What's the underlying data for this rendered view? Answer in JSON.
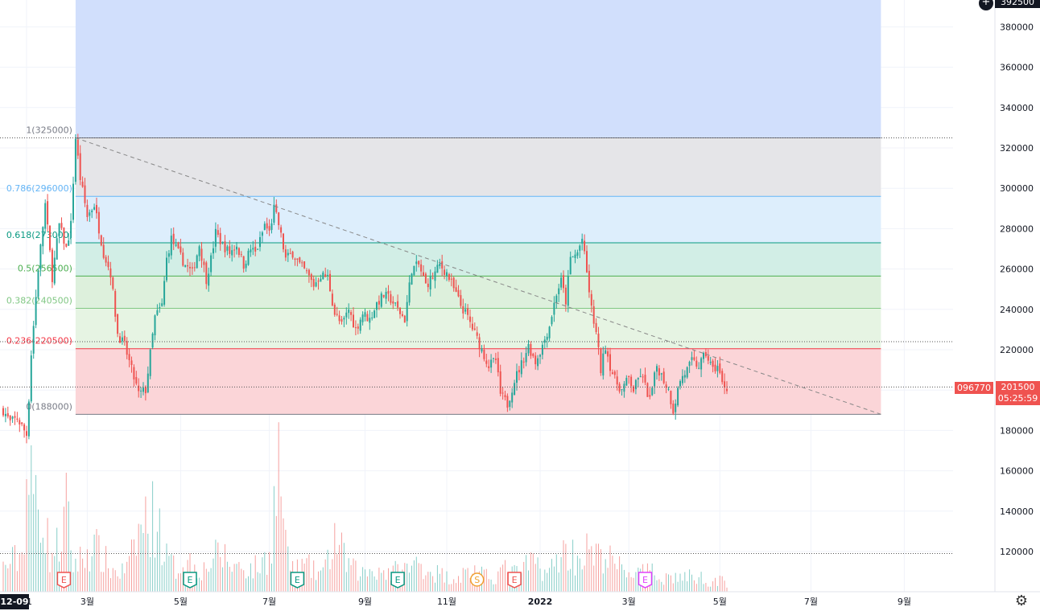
{
  "chart_data": {
    "type": "candlestick",
    "y_axis": {
      "ticks": [
        "380000",
        "360000",
        "340000",
        "320000",
        "300000",
        "280000",
        "260000",
        "240000",
        "220000",
        "200000",
        "180000",
        "160000",
        "140000",
        "120000"
      ],
      "tick_values": [
        380000,
        360000,
        340000,
        320000,
        300000,
        280000,
        260000,
        240000,
        220000,
        200000,
        180000,
        160000,
        140000,
        120000
      ]
    },
    "x_axis": {
      "ticks": [
        {
          "label": "21",
          "idx": 10
        },
        {
          "label": "3월",
          "idx": 36
        },
        {
          "label": "5월",
          "idx": 76
        },
        {
          "label": "7월",
          "idx": 114
        },
        {
          "label": "9월",
          "idx": 155
        },
        {
          "label": "11월",
          "idx": 190
        },
        {
          "label": "2022",
          "idx": 230
        },
        {
          "label": "3월",
          "idx": 268
        },
        {
          "label": "5월",
          "idx": 307
        },
        {
          "label": "7월",
          "idx": 346
        },
        {
          "label": "9월",
          "idx": 386
        }
      ]
    },
    "fib_levels": [
      {
        "label": "1(325000)",
        "ratio": 1,
        "price": 325000,
        "color": "#787b86",
        "fill": "#e5e5e8"
      },
      {
        "label": "0.786(296000)",
        "ratio": 0.786,
        "price": 296000,
        "color": "#64b5f6",
        "fill": "#ddeefc"
      },
      {
        "label": "0.618(273000)",
        "ratio": 0.618,
        "price": 273000,
        "color": "#089981",
        "fill": "#d2eee6"
      },
      {
        "label": "0.5(256500)",
        "ratio": 0.5,
        "price": 256500,
        "color": "#4caf50",
        "fill": "#ddf0dc"
      },
      {
        "label": "0.382(240500)",
        "ratio": 0.382,
        "price": 240500,
        "color": "#81c784",
        "fill": "#e6f4e3"
      },
      {
        "label": "0.236(220500)",
        "ratio": 0.236,
        "price": 220500,
        "color": "#f23645",
        "fill": "#fbd5d8"
      },
      {
        "label": "0(188000)",
        "ratio": 0,
        "price": 188000,
        "color": "#787b86",
        "fill": null
      }
    ],
    "extension_fill": "#d1dffc",
    "trend_line": {
      "from_idx": 31,
      "from_price": 325000,
      "to_idx": 376,
      "to_price": 188000
    },
    "horizontal_lines": [
      {
        "price": 325000,
        "style": "dotted"
      },
      {
        "price": 224000,
        "style": "dotted"
      },
      {
        "price": 201500,
        "style": "dotted"
      },
      {
        "price": 119000,
        "style": "dotted"
      }
    ],
    "price_segments": [
      [
        0,
        190000
      ],
      [
        3,
        184000
      ],
      [
        6,
        186000
      ],
      [
        10,
        178000
      ],
      [
        11,
        196000
      ],
      [
        12,
        218000
      ],
      [
        15,
        260000
      ],
      [
        18,
        292000
      ],
      [
        21,
        256000
      ],
      [
        24,
        282000
      ],
      [
        27,
        270000
      ],
      [
        29,
        282000
      ],
      [
        31,
        325000
      ],
      [
        33,
        305000
      ],
      [
        36,
        286000
      ],
      [
        39,
        292000
      ],
      [
        43,
        268000
      ],
      [
        46,
        258000
      ],
      [
        49,
        228000
      ],
      [
        52,
        222000
      ],
      [
        55,
        210000
      ],
      [
        58,
        198000
      ],
      [
        61,
        200000
      ],
      [
        63,
        218000
      ],
      [
        65,
        236000
      ],
      [
        68,
        242000
      ],
      [
        70,
        265000
      ],
      [
        72,
        275000
      ],
      [
        75,
        268000
      ],
      [
        78,
        262000
      ],
      [
        81,
        258000
      ],
      [
        84,
        272000
      ],
      [
        87,
        255000
      ],
      [
        89,
        265000
      ],
      [
        91,
        278000
      ],
      [
        94,
        272000
      ],
      [
        97,
        268000
      ],
      [
        100,
        272000
      ],
      [
        103,
        262000
      ],
      [
        106,
        270000
      ],
      [
        108,
        268000
      ],
      [
        110,
        274000
      ],
      [
        112,
        282000
      ],
      [
        114,
        278000
      ],
      [
        116,
        290000
      ],
      [
        118,
        282000
      ],
      [
        121,
        265000
      ],
      [
        124,
        268000
      ],
      [
        127,
        262000
      ],
      [
        130,
        258000
      ],
      [
        133,
        252000
      ],
      [
        136,
        257000
      ],
      [
        139,
        256000
      ],
      [
        142,
        238000
      ],
      [
        145,
        232000
      ],
      [
        148,
        240000
      ],
      [
        151,
        230000
      ],
      [
        154,
        238000
      ],
      [
        157,
        235000
      ],
      [
        160,
        243000
      ],
      [
        163,
        247000
      ],
      [
        166,
        245000
      ],
      [
        169,
        240000
      ],
      [
        172,
        235000
      ],
      [
        175,
        260000
      ],
      [
        178,
        262000
      ],
      [
        181,
        252000
      ],
      [
        184,
        256000
      ],
      [
        187,
        262000
      ],
      [
        190,
        258000
      ],
      [
        193,
        250000
      ],
      [
        196,
        242000
      ],
      [
        199,
        236000
      ],
      [
        202,
        228000
      ],
      [
        205,
        220000
      ],
      [
        208,
        212000
      ],
      [
        211,
        215000
      ],
      [
        213,
        198000
      ],
      [
        216,
        193000
      ],
      [
        219,
        205000
      ],
      [
        222,
        213000
      ],
      [
        225,
        222000
      ],
      [
        228,
        214000
      ],
      [
        231,
        222000
      ],
      [
        234,
        232000
      ],
      [
        237,
        248000
      ],
      [
        239,
        254000
      ],
      [
        241,
        244000
      ],
      [
        243,
        265000
      ],
      [
        246,
        268000
      ],
      [
        248,
        275000
      ],
      [
        250,
        258000
      ],
      [
        252,
        240000
      ],
      [
        254,
        228000
      ],
      [
        256,
        210000
      ],
      [
        258,
        222000
      ],
      [
        260,
        212000
      ],
      [
        262,
        205000
      ],
      [
        265,
        200000
      ],
      [
        268,
        206000
      ],
      [
        270,
        200000
      ],
      [
        273,
        208000
      ],
      [
        275,
        202000
      ],
      [
        277,
        195000
      ],
      [
        280,
        212000
      ],
      [
        283,
        205000
      ],
      [
        285,
        200000
      ],
      [
        287,
        190000
      ],
      [
        290,
        205000
      ],
      [
        293,
        210000
      ],
      [
        295,
        214000
      ],
      [
        298,
        212000
      ],
      [
        301,
        218000
      ],
      [
        304,
        210000
      ],
      [
        306,
        212000
      ],
      [
        308,
        203000
      ],
      [
        310,
        201500
      ]
    ],
    "volume_segments": [
      [
        0,
        13
      ],
      [
        8,
        20
      ],
      [
        10,
        60
      ],
      [
        13,
        52
      ],
      [
        16,
        50
      ],
      [
        20,
        20
      ],
      [
        24,
        25
      ],
      [
        27,
        44
      ],
      [
        30,
        15
      ],
      [
        34,
        18
      ],
      [
        38,
        25
      ],
      [
        42,
        20
      ],
      [
        46,
        12
      ],
      [
        50,
        10
      ],
      [
        54,
        14
      ],
      [
        58,
        32
      ],
      [
        62,
        40
      ],
      [
        66,
        40
      ],
      [
        70,
        18
      ],
      [
        74,
        12
      ],
      [
        78,
        18
      ],
      [
        82,
        14
      ],
      [
        86,
        12
      ],
      [
        90,
        18
      ],
      [
        94,
        20
      ],
      [
        98,
        14
      ],
      [
        102,
        14
      ],
      [
        106,
        12
      ],
      [
        110,
        14
      ],
      [
        114,
        20
      ],
      [
        118,
        70
      ],
      [
        122,
        16
      ],
      [
        126,
        12
      ],
      [
        130,
        14
      ],
      [
        134,
        10
      ],
      [
        138,
        12
      ],
      [
        142,
        30
      ],
      [
        146,
        18
      ],
      [
        150,
        12
      ],
      [
        154,
        10
      ],
      [
        158,
        12
      ],
      [
        162,
        12
      ],
      [
        166,
        10
      ],
      [
        170,
        12
      ],
      [
        174,
        12
      ],
      [
        178,
        16
      ],
      [
        182,
        12
      ],
      [
        186,
        10
      ],
      [
        190,
        8
      ],
      [
        194,
        8
      ],
      [
        198,
        10
      ],
      [
        202,
        12
      ],
      [
        206,
        8
      ],
      [
        210,
        8
      ],
      [
        214,
        12
      ],
      [
        218,
        10
      ],
      [
        222,
        10
      ],
      [
        226,
        16
      ],
      [
        230,
        14
      ],
      [
        234,
        10
      ],
      [
        238,
        20
      ],
      [
        242,
        22
      ],
      [
        246,
        18
      ],
      [
        250,
        22
      ],
      [
        254,
        18
      ],
      [
        258,
        20
      ],
      [
        262,
        14
      ],
      [
        266,
        12
      ],
      [
        270,
        10
      ],
      [
        274,
        10
      ],
      [
        278,
        10
      ],
      [
        282,
        8
      ],
      [
        286,
        8
      ],
      [
        290,
        8
      ],
      [
        294,
        8
      ],
      [
        298,
        8
      ],
      [
        302,
        6
      ],
      [
        306,
        6
      ],
      [
        310,
        5
      ]
    ],
    "event_markers": [
      {
        "idx": 26,
        "letter": "E",
        "color": "#ef5350"
      },
      {
        "idx": 80,
        "letter": "E",
        "color": "#089981"
      },
      {
        "idx": 126,
        "letter": "E",
        "color": "#089981"
      },
      {
        "idx": 169,
        "letter": "E",
        "color": "#089981"
      },
      {
        "idx": 203,
        "letter": "S",
        "color": "#f0a030",
        "round": true
      },
      {
        "idx": 219,
        "letter": "E",
        "color": "#ef5350"
      },
      {
        "idx": 275,
        "letter": "E",
        "color": "#e040fb",
        "future": true
      }
    ],
    "up_color": "#26a69a",
    "down_color": "#ef5350"
  },
  "ui": {
    "top_price": "392500",
    "symbol_badge": "096770",
    "current_price": "201500",
    "countdown": "05:25:59",
    "date_badge": "12-09",
    "plus_icon": "plus-circle-icon",
    "settings_icon": "gear-icon"
  }
}
